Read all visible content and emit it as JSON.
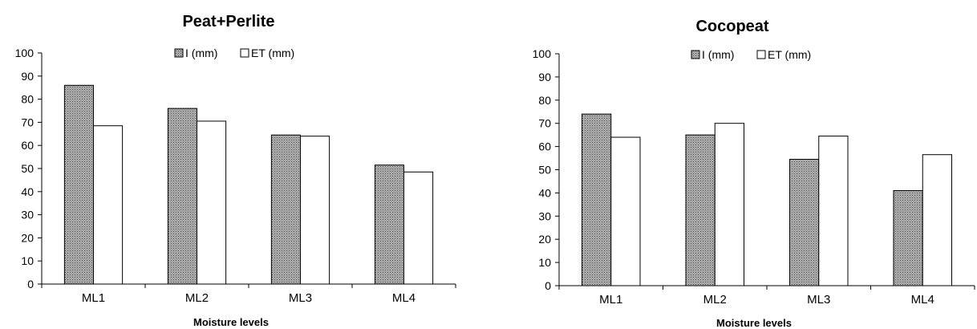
{
  "chart_data": [
    {
      "type": "bar",
      "title": "Peat+Perlite",
      "xlabel": "Moisture levels",
      "ylabel": "",
      "ylim": [
        0,
        100
      ],
      "yticks": [
        0,
        10,
        20,
        30,
        40,
        50,
        60,
        70,
        80,
        90,
        100
      ],
      "categories": [
        "ML1",
        "ML2",
        "ML3",
        "ML4"
      ],
      "legend_position": "top",
      "series": [
        {
          "name": "I (mm)",
          "pattern": "dotted-gray",
          "values": [
            86,
            76,
            64.5,
            51.5
          ]
        },
        {
          "name": "ET (mm)",
          "pattern": "white",
          "values": [
            68.5,
            70.5,
            64,
            48.5
          ]
        }
      ]
    },
    {
      "type": "bar",
      "title": "Cocopeat",
      "xlabel": "Moisture levels",
      "ylabel": "",
      "ylim": [
        0,
        100
      ],
      "yticks": [
        0,
        10,
        20,
        30,
        40,
        50,
        60,
        70,
        80,
        90,
        100
      ],
      "categories": [
        "ML1",
        "ML2",
        "ML3",
        "ML4"
      ],
      "legend_position": "top",
      "series": [
        {
          "name": "I (mm)",
          "pattern": "dotted-gray",
          "values": [
            74,
            65,
            54.5,
            41
          ]
        },
        {
          "name": "ET (mm)",
          "pattern": "white",
          "values": [
            64,
            70,
            64.5,
            56.5
          ]
        }
      ]
    }
  ]
}
